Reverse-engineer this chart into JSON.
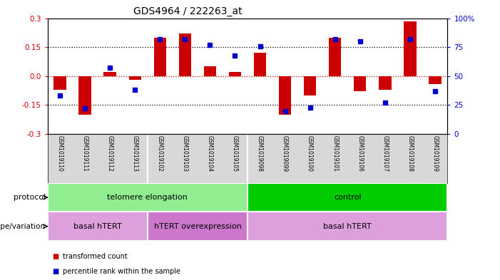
{
  "title": "GDS4964 / 222263_at",
  "samples": [
    "GSM1019110",
    "GSM1019111",
    "GSM1019112",
    "GSM1019113",
    "GSM1019102",
    "GSM1019103",
    "GSM1019104",
    "GSM1019105",
    "GSM1019098",
    "GSM1019099",
    "GSM1019100",
    "GSM1019101",
    "GSM1019106",
    "GSM1019107",
    "GSM1019108",
    "GSM1019109"
  ],
  "red_values": [
    -0.07,
    -0.2,
    0.02,
    -0.02,
    0.2,
    0.22,
    0.05,
    0.02,
    0.12,
    -0.2,
    -0.1,
    0.2,
    -0.08,
    -0.07,
    0.285,
    -0.04
  ],
  "blue_values": [
    0.33,
    0.22,
    0.57,
    0.38,
    0.82,
    0.82,
    0.77,
    0.68,
    0.76,
    0.2,
    0.23,
    0.82,
    0.8,
    0.27,
    0.82,
    0.37
  ],
  "ylim": [
    -0.3,
    0.3
  ],
  "yticks": [
    -0.3,
    -0.15,
    0.0,
    0.15,
    0.3
  ],
  "y2ticks": [
    0,
    25,
    50,
    75,
    100
  ],
  "y2labels": [
    "0",
    "25",
    "50",
    "75",
    "100%"
  ],
  "dotted_lines_black": [
    -0.15,
    0.15
  ],
  "dotted_line_red": 0.0,
  "bar_width": 0.5,
  "blue_marker_size": 5,
  "protocol_groups": [
    {
      "label": "telomere elongation",
      "start": 0,
      "end": 8,
      "color": "#90ee90"
    },
    {
      "label": "control",
      "start": 8,
      "end": 16,
      "color": "#00cc00"
    }
  ],
  "genotype_groups": [
    {
      "label": "basal hTERT",
      "start": 0,
      "end": 4,
      "color": "#dda0dd"
    },
    {
      "label": "hTERT overexpression",
      "start": 4,
      "end": 8,
      "color": "#cc77cc"
    },
    {
      "label": "basal hTERT",
      "start": 8,
      "end": 16,
      "color": "#dda0dd"
    }
  ],
  "legend_red": "transformed count",
  "legend_blue": "percentile rank within the sample",
  "red_color": "#cc0000",
  "blue_color": "#0000cc",
  "label_bg": "#d8d8d8",
  "plot_bg": "#ffffff",
  "title_fontsize": 10,
  "tick_fontsize": 7.5,
  "label_fontsize": 8,
  "sample_fontsize": 5.5,
  "row_label_fontsize": 8
}
